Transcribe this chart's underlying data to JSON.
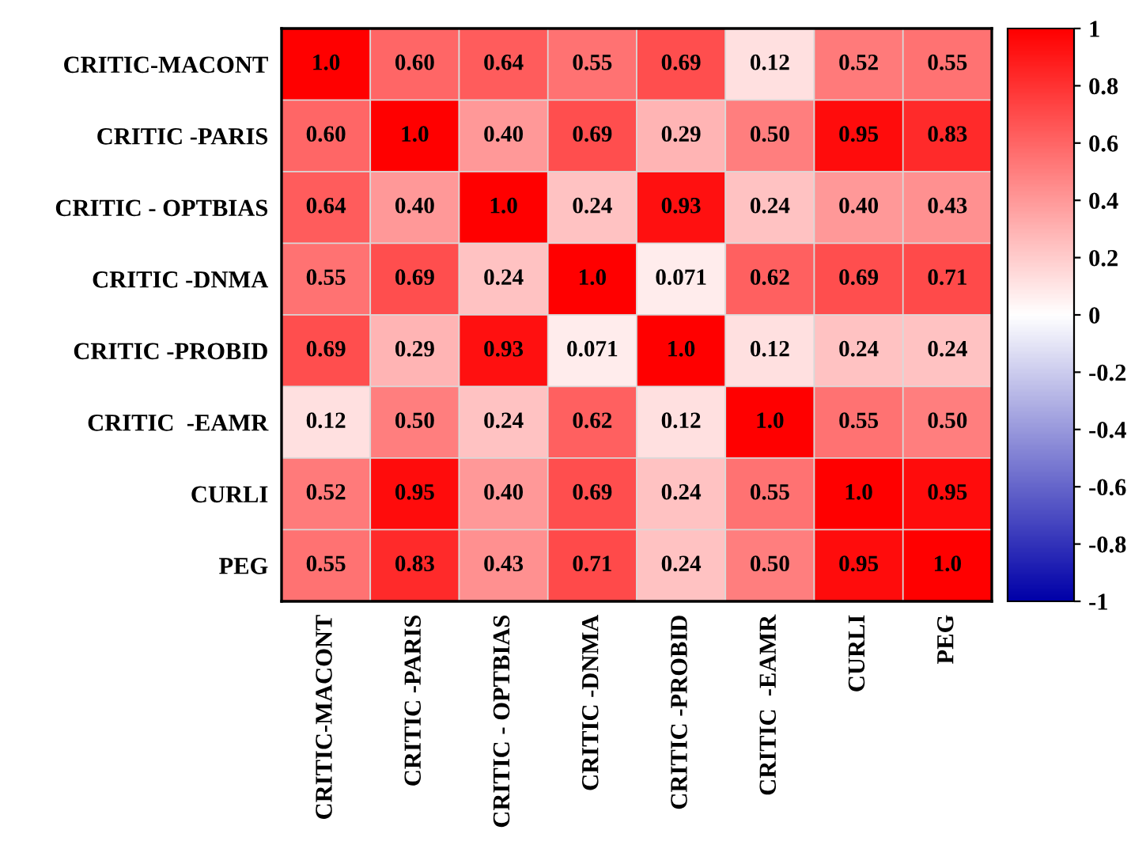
{
  "chart_data": {
    "type": "heatmap",
    "categories": [
      "CRITIC-MACONT",
      "CRITIC -PARIS",
      "CRITIC - OPTBIAS",
      "CRITIC -DNMA",
      "CRITIC -PROBID",
      "CRITIC  -EAMR",
      "CURLI",
      "PEG"
    ],
    "y_categories": [
      "CRITIC-MACONT",
      "CRITIC -PARIS",
      "CRITIC - OPTBIAS",
      "CRITIC -DNMA",
      "CRITIC -PROBID",
      "CRITIC  -EAMR",
      "CURLI",
      "PEG"
    ],
    "cells": [
      [
        1,
        0.6,
        0.64,
        0.55,
        0.69,
        0.12,
        0.52,
        0.55
      ],
      [
        0.6,
        1,
        0.4,
        0.69,
        0.29,
        0.5,
        0.95,
        0.83
      ],
      [
        0.64,
        0.4,
        1,
        0.24,
        0.93,
        0.24,
        0.4,
        0.43
      ],
      [
        0.55,
        0.69,
        0.24,
        1,
        0.071,
        0.62,
        0.69,
        0.71
      ],
      [
        0.69,
        0.29,
        0.93,
        0.071,
        1,
        0.12,
        0.24,
        0.24
      ],
      [
        0.12,
        0.5,
        0.24,
        0.62,
        0.12,
        1,
        0.55,
        0.5
      ],
      [
        0.52,
        0.95,
        0.4,
        0.69,
        0.24,
        0.55,
        1,
        0.95
      ],
      [
        0.55,
        0.83,
        0.43,
        0.71,
        0.24,
        0.5,
        0.95,
        1
      ]
    ],
    "cell_labels": [
      [
        "1.0",
        "0.60",
        "0.64",
        "0.55",
        "0.69",
        "0.12",
        "0.52",
        "0.55"
      ],
      [
        "0.60",
        "1.0",
        "0.40",
        "0.69",
        "0.29",
        "0.50",
        "0.95",
        "0.83"
      ],
      [
        "0.64",
        "0.40",
        "1.0",
        "0.24",
        "0.93",
        "0.24",
        "0.40",
        "0.43"
      ],
      [
        "0.55",
        "0.69",
        "0.24",
        "1.0",
        "0.071",
        "0.62",
        "0.69",
        "0.71"
      ],
      [
        "0.69",
        "0.29",
        "0.93",
        "0.071",
        "1.0",
        "0.12",
        "0.24",
        "0.24"
      ],
      [
        "0.12",
        "0.50",
        "0.24",
        "0.62",
        "0.12",
        "1.0",
        "0.55",
        "0.50"
      ],
      [
        "0.52",
        "0.95",
        "0.40",
        "0.69",
        "0.24",
        "0.55",
        "1.0",
        "0.95"
      ],
      [
        "0.55",
        "0.83",
        "0.43",
        "0.71",
        "0.24",
        "0.50",
        "0.95",
        "1.0"
      ]
    ],
    "clim": [
      -1,
      1
    ],
    "cticks": [
      1,
      0.8,
      0.6,
      0.4,
      0.2,
      0,
      -0.2,
      -0.4,
      -0.6,
      -0.8,
      -1
    ]
  }
}
